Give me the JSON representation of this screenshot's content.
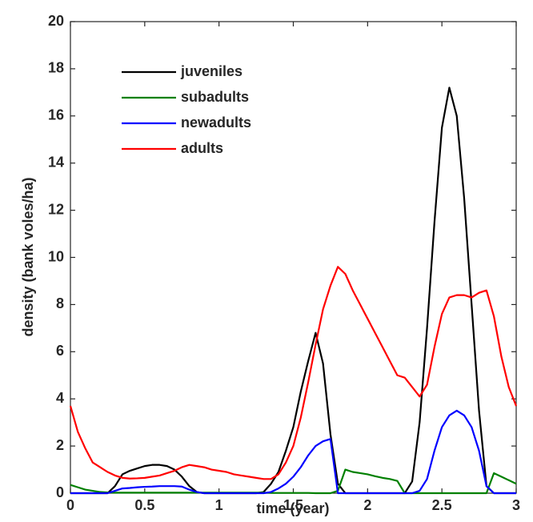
{
  "chart_data": {
    "type": "line",
    "xlabel": "time (year)",
    "ylabel": "density (bank voles/ha)",
    "x": [
      0,
      0.05,
      0.1,
      0.15,
      0.2,
      0.25,
      0.3,
      0.35,
      0.4,
      0.45,
      0.5,
      0.55,
      0.6,
      0.65,
      0.7,
      0.75,
      0.8,
      0.85,
      0.9,
      0.95,
      1,
      1.05,
      1.1,
      1.15,
      1.2,
      1.25,
      1.3,
      1.35,
      1.4,
      1.45,
      1.5,
      1.55,
      1.6,
      1.65,
      1.7,
      1.75,
      1.8,
      1.85,
      1.9,
      1.95,
      2,
      2.05,
      2.1,
      2.15,
      2.2,
      2.25,
      2.3,
      2.35,
      2.4,
      2.45,
      2.5,
      2.55,
      2.6,
      2.65,
      2.7,
      2.75,
      2.8,
      2.85,
      2.9,
      2.95,
      3
    ],
    "series": [
      {
        "name": "juveniles",
        "color": "#000000",
        "values": [
          0,
          0,
          0,
          0,
          0,
          0,
          0.3,
          0.8,
          0.95,
          1.05,
          1.15,
          1.2,
          1.2,
          1.15,
          1.0,
          0.7,
          0.3,
          0.05,
          0,
          0,
          0,
          0,
          0,
          0,
          0,
          0,
          0.05,
          0.4,
          0.9,
          1.8,
          2.8,
          4.3,
          5.6,
          6.8,
          5.5,
          2.5,
          0.4,
          0,
          0,
          0,
          0,
          0,
          0,
          0,
          0,
          0,
          0.5,
          3,
          7,
          11.5,
          15.5,
          17.2,
          16,
          12.5,
          8,
          3.5,
          0.3,
          0,
          0,
          0,
          0
        ]
      },
      {
        "name": "subadults",
        "color": "#008000",
        "values": [
          0.35,
          0.25,
          0.15,
          0.1,
          0.05,
          0.03,
          0.02,
          0.02,
          0.02,
          0.02,
          0.02,
          0.02,
          0.02,
          0.02,
          0.02,
          0.02,
          0.02,
          0.02,
          0.02,
          0.02,
          0.02,
          0.02,
          0.02,
          0.02,
          0.02,
          0.02,
          0.02,
          0.01,
          0.01,
          0.01,
          0.01,
          0.01,
          0.01,
          0,
          0,
          0,
          0.1,
          1.0,
          0.9,
          0.85,
          0.8,
          0.72,
          0.65,
          0.6,
          0.52,
          0,
          0,
          0,
          0,
          0,
          0,
          0,
          0,
          0,
          0,
          0,
          0,
          0.85,
          0.7,
          0.55,
          0.4
        ]
      },
      {
        "name": "newadults",
        "color": "#0000ff",
        "values": [
          0,
          0,
          0,
          0,
          0,
          0,
          0.1,
          0.2,
          0.22,
          0.25,
          0.27,
          0.28,
          0.3,
          0.3,
          0.3,
          0.28,
          0.15,
          0.05,
          0,
          0,
          0,
          0,
          0,
          0,
          0,
          0,
          0,
          0.05,
          0.2,
          0.4,
          0.7,
          1.1,
          1.6,
          2.0,
          2.2,
          2.3,
          0,
          0,
          0,
          0,
          0,
          0,
          0,
          0,
          0,
          0,
          0,
          0.1,
          0.6,
          1.8,
          2.8,
          3.3,
          3.5,
          3.3,
          2.8,
          1.8,
          0.3,
          0,
          0,
          0,
          0
        ]
      },
      {
        "name": "adults",
        "color": "#ff0000",
        "values": [
          3.7,
          2.6,
          1.9,
          1.3,
          1.1,
          0.9,
          0.75,
          0.65,
          0.62,
          0.63,
          0.65,
          0.7,
          0.75,
          0.85,
          0.95,
          1.1,
          1.2,
          1.15,
          1.1,
          1.0,
          0.95,
          0.9,
          0.8,
          0.75,
          0.7,
          0.65,
          0.6,
          0.6,
          0.8,
          1.3,
          2.0,
          3.2,
          4.7,
          6.3,
          7.8,
          8.8,
          9.6,
          9.3,
          8.6,
          8.0,
          7.4,
          6.8,
          6.2,
          5.6,
          5.0,
          4.9,
          4.5,
          4.1,
          4.6,
          6.2,
          7.6,
          8.3,
          8.4,
          8.4,
          8.3,
          8.5,
          8.6,
          7.5,
          5.8,
          4.5,
          3.7
        ]
      }
    ],
    "xlim": [
      0,
      3
    ],
    "ylim": [
      0,
      20
    ],
    "xticks": [
      0,
      0.5,
      1,
      1.5,
      2,
      2.5,
      3
    ],
    "yticks": [
      0,
      2,
      4,
      6,
      8,
      10,
      12,
      14,
      16,
      18,
      20
    ],
    "legend": "upper left"
  }
}
